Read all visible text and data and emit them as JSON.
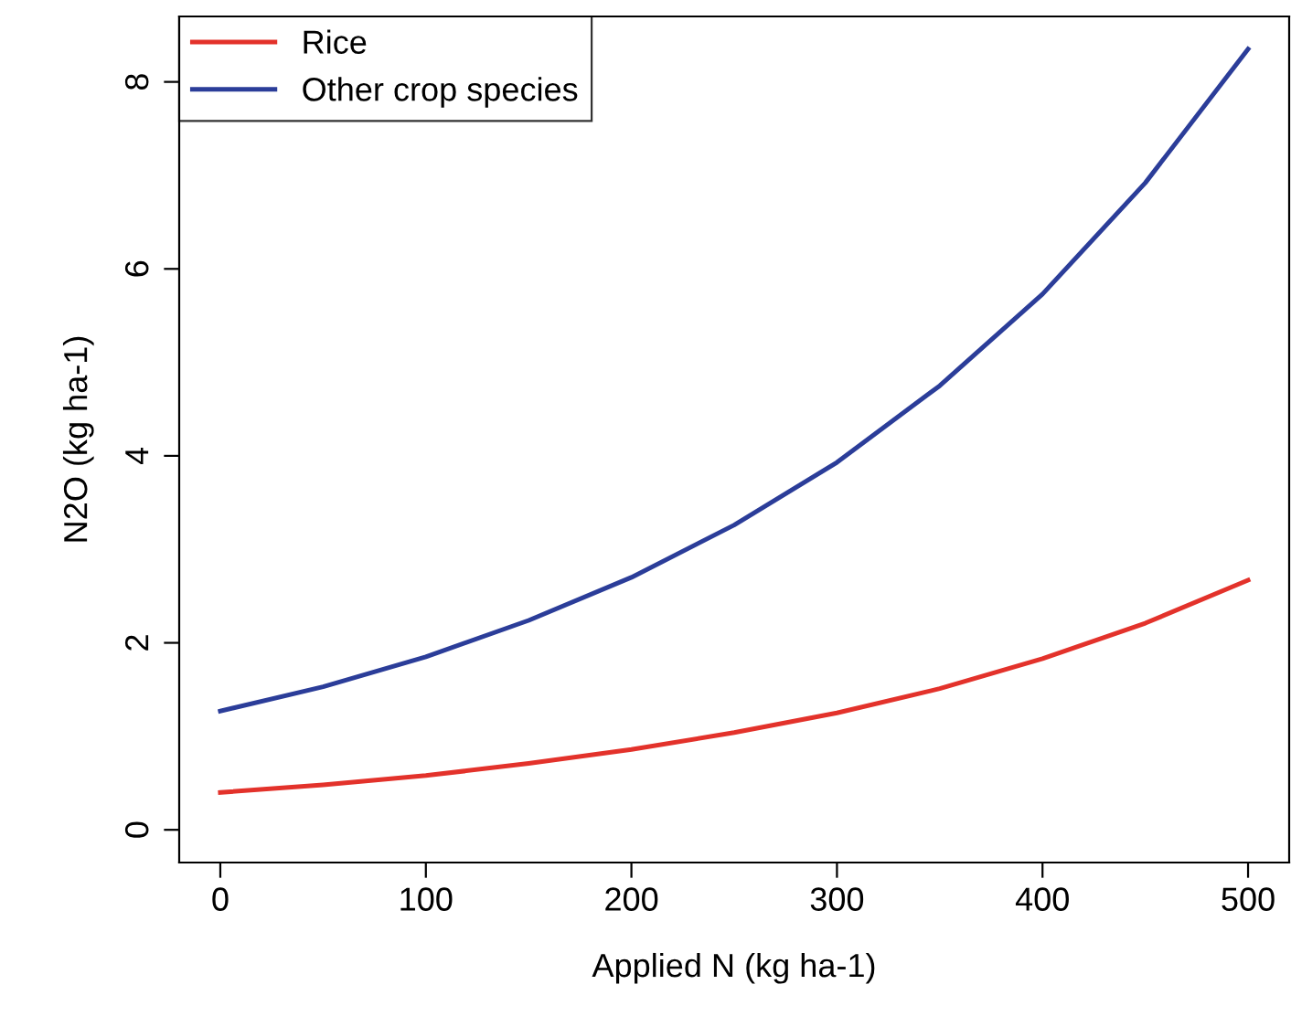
{
  "chart_data": {
    "type": "line",
    "xlabel": "Applied N (kg ha-1)",
    "ylabel": "N2O (kg ha-1)",
    "x": [
      0,
      50,
      100,
      150,
      200,
      250,
      300,
      350,
      400,
      450,
      500
    ],
    "series": [
      {
        "name": "Rice",
        "color": "#e3322b",
        "values": [
          0.4,
          0.48,
          0.58,
          0.71,
          0.86,
          1.04,
          1.25,
          1.51,
          1.83,
          2.21,
          2.67
        ]
      },
      {
        "name": "Other crop species",
        "color": "#2b3d99",
        "values": [
          1.27,
          1.53,
          1.85,
          2.24,
          2.7,
          3.26,
          3.93,
          4.75,
          5.73,
          6.92,
          8.35
        ]
      }
    ],
    "xlim": [
      -20,
      520
    ],
    "ylim": [
      -0.35,
      8.7
    ],
    "xticks": [
      0,
      100,
      200,
      300,
      400,
      500
    ],
    "yticks": [
      0,
      2,
      4,
      6,
      8
    ],
    "grid": false,
    "legend": "top left",
    "marker": "none",
    "line_style": "solid"
  }
}
